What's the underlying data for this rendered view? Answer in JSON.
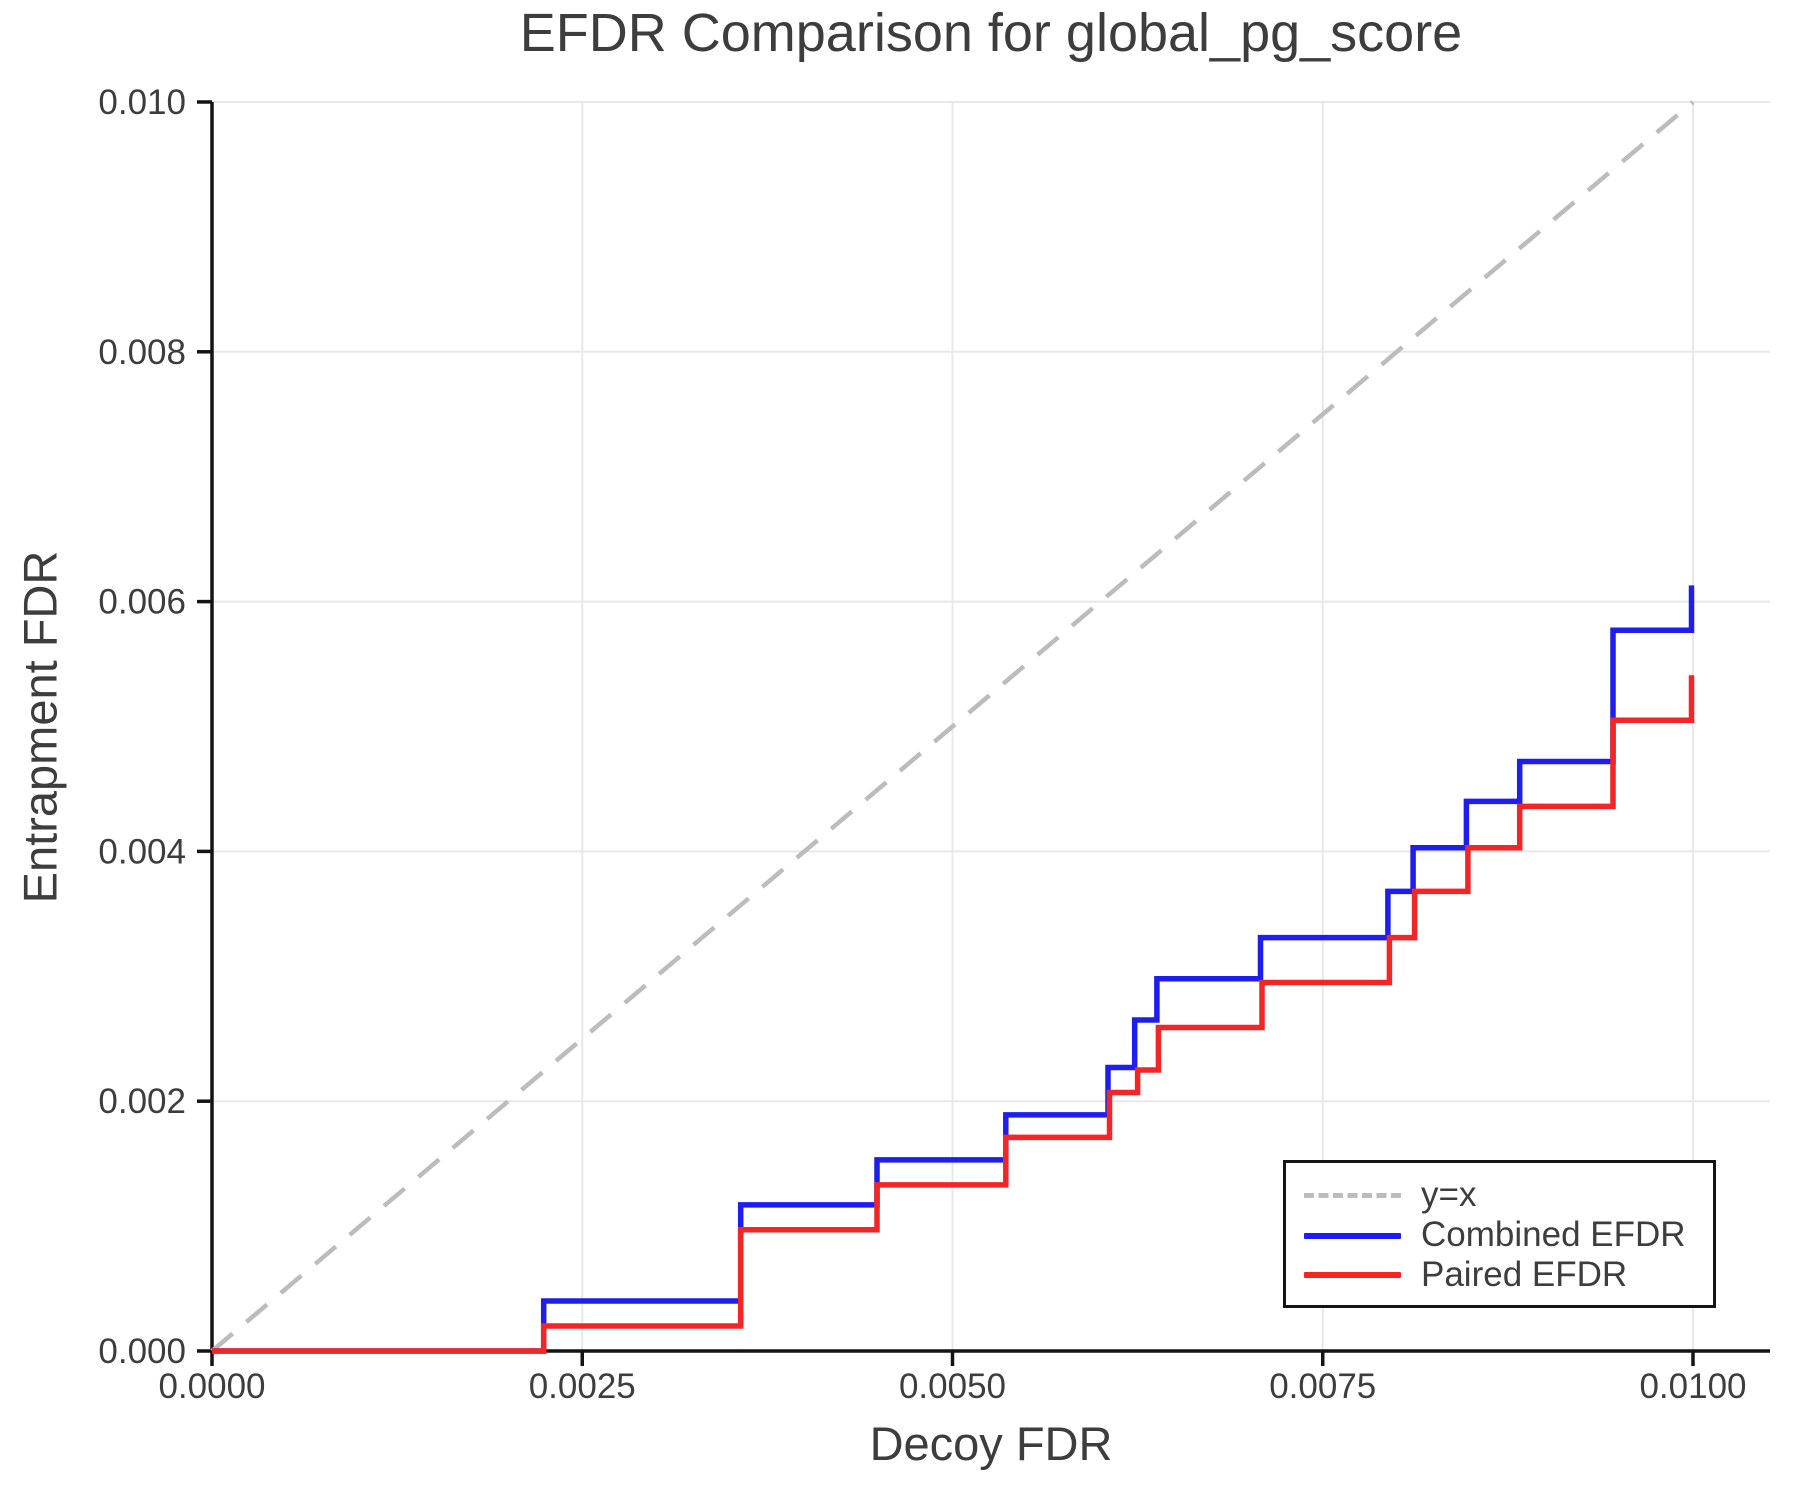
{
  "page": {
    "background": "#ffffff"
  },
  "chart_data": {
    "type": "line",
    "title": "EFDR Comparison for global_pg_score",
    "xlabel": "Decoy FDR",
    "ylabel": "Entrapment FDR",
    "xlim": [
      0,
      0.01052
    ],
    "ylim": [
      0,
      0.01
    ],
    "grid": true,
    "x_ticks": {
      "values": [
        0,
        0.0025,
        0.005,
        0.0075,
        0.01
      ],
      "labels": [
        "0.0000",
        "0.0025",
        "0.0050",
        "0.0075",
        "0.0100"
      ]
    },
    "y_ticks": {
      "values": [
        0,
        0.002,
        0.004,
        0.006,
        0.008,
        0.01
      ],
      "labels": [
        "0.000",
        "0.002",
        "0.004",
        "0.006",
        "0.008",
        "0.010"
      ]
    },
    "legend": {
      "position": "lower right",
      "entries": [
        "y=x",
        "Combined EFDR",
        "Paired EFDR"
      ]
    },
    "colors": {
      "identity_line": "#bcbcbc",
      "combined": "#1e1eee",
      "paired": "#f32525",
      "grid": "#e8e8e8",
      "spine": "#141414",
      "text": "#3d3d3d"
    },
    "series": [
      {
        "name": "y=x",
        "type": "line",
        "style": "dashed",
        "color": "#bcbcbc",
        "points": [
          [
            0,
            0
          ],
          [
            0.01,
            0.01
          ]
        ]
      },
      {
        "name": "Combined EFDR",
        "type": "step",
        "style": "solid",
        "color": "#1e1eee",
        "start": [
          0,
          0
        ],
        "steps": [
          [
            0.00224,
            0.0004
          ],
          [
            0.00357,
            0.00117
          ],
          [
            0.00449,
            0.00153
          ],
          [
            0.00536,
            0.00189
          ],
          [
            0.00605,
            0.00227
          ],
          [
            0.00623,
            0.00265
          ],
          [
            0.00638,
            0.00298
          ],
          [
            0.00708,
            0.00331
          ],
          [
            0.00794,
            0.00368
          ],
          [
            0.00811,
            0.00403
          ],
          [
            0.00847,
            0.0044
          ],
          [
            0.00883,
            0.00472
          ],
          [
            0.00946,
            0.00577
          ],
          [
            0.00999,
            0.00613
          ]
        ]
      },
      {
        "name": "Paired EFDR",
        "type": "step",
        "style": "solid",
        "color": "#f32525",
        "start": [
          0,
          0
        ],
        "steps": [
          [
            0.00224,
            0.0002
          ],
          [
            0.00357,
            0.00097
          ],
          [
            0.00449,
            0.00133
          ],
          [
            0.00536,
            0.00171
          ],
          [
            0.00606,
            0.00207
          ],
          [
            0.00625,
            0.00225
          ],
          [
            0.00639,
            0.00259
          ],
          [
            0.00709,
            0.00295
          ],
          [
            0.00795,
            0.00331
          ],
          [
            0.00812,
            0.00368
          ],
          [
            0.00848,
            0.00403
          ],
          [
            0.00883,
            0.00436
          ],
          [
            0.00946,
            0.00505
          ],
          [
            0.00999,
            0.00541
          ]
        ]
      }
    ]
  }
}
